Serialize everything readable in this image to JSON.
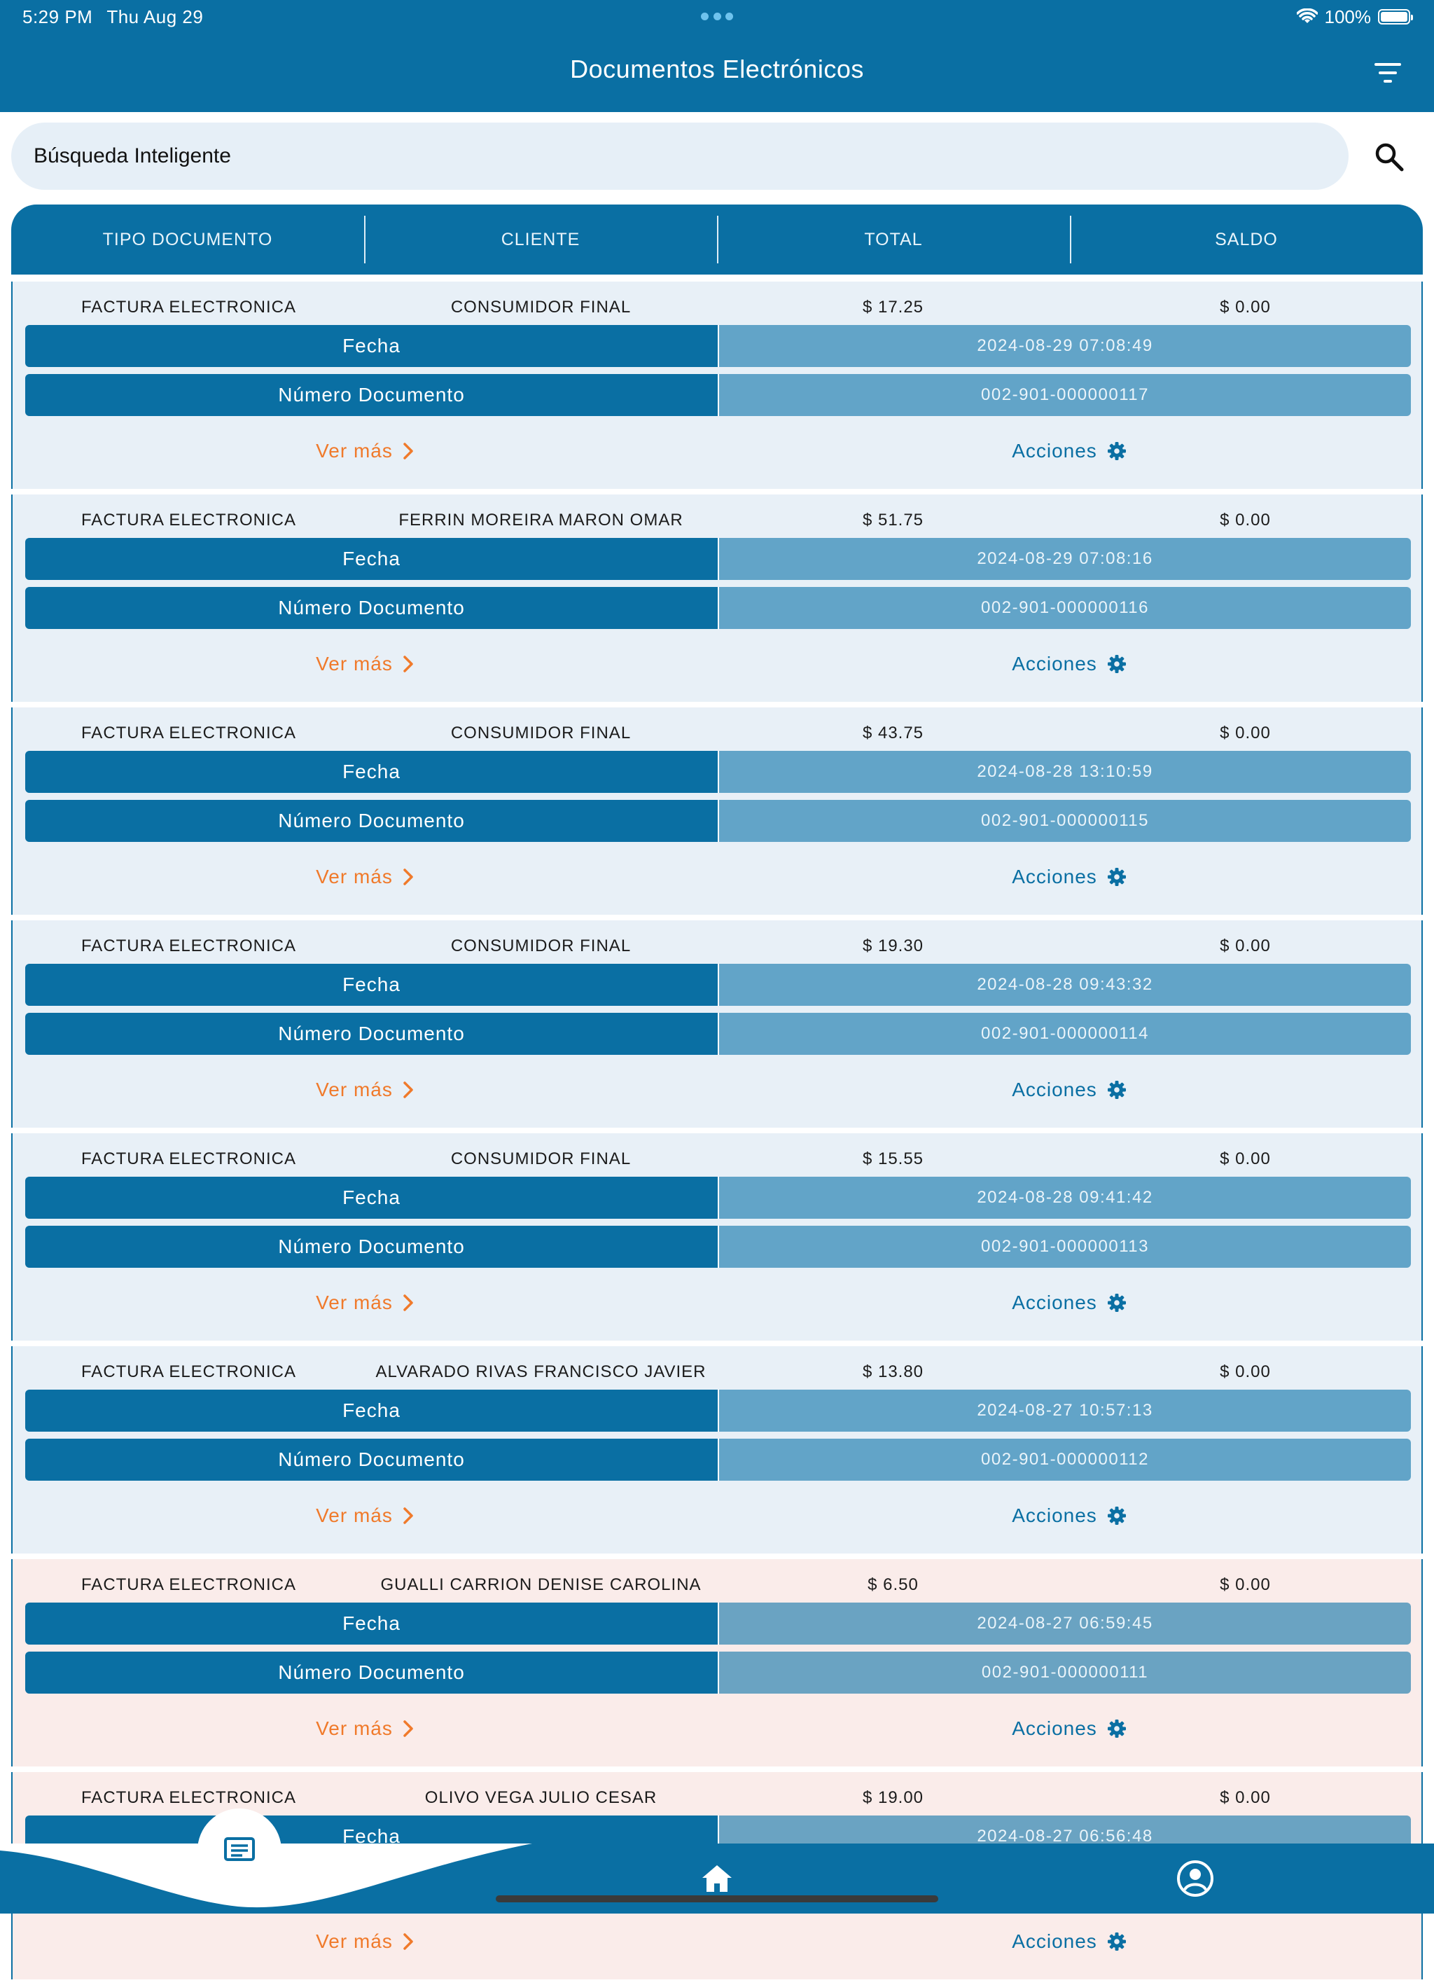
{
  "status_bar": {
    "time": "5:29 PM",
    "date": "Thu Aug 29",
    "battery": "100%"
  },
  "header": {
    "title": "Documentos Electrónicos"
  },
  "search": {
    "placeholder": "Búsqueda Inteligente"
  },
  "columns": [
    "TIPO DOCUMENTO",
    "CLIENTE",
    "TOTAL",
    "SALDO"
  ],
  "row_labels": {
    "fecha": "Fecha",
    "numero": "Número Documento",
    "ver_mas": "Ver más",
    "acciones": "Acciones"
  },
  "documents": [
    {
      "tipo": "FACTURA ELECTRONICA",
      "cliente": "CONSUMIDOR FINAL",
      "total": "$ 17.25",
      "saldo": "$ 0.00",
      "fecha": "2024-08-29 07:08:49",
      "numero": "002-901-000000117",
      "highlight": false
    },
    {
      "tipo": "FACTURA ELECTRONICA",
      "cliente": "FERRIN MOREIRA MARON OMAR",
      "total": "$ 51.75",
      "saldo": "$ 0.00",
      "fecha": "2024-08-29 07:08:16",
      "numero": "002-901-000000116",
      "highlight": false
    },
    {
      "tipo": "FACTURA ELECTRONICA",
      "cliente": "CONSUMIDOR FINAL",
      "total": "$ 43.75",
      "saldo": "$ 0.00",
      "fecha": "2024-08-28 13:10:59",
      "numero": "002-901-000000115",
      "highlight": false
    },
    {
      "tipo": "FACTURA ELECTRONICA",
      "cliente": "CONSUMIDOR FINAL",
      "total": "$ 19.30",
      "saldo": "$ 0.00",
      "fecha": "2024-08-28 09:43:32",
      "numero": "002-901-000000114",
      "highlight": false
    },
    {
      "tipo": "FACTURA ELECTRONICA",
      "cliente": "CONSUMIDOR FINAL",
      "total": "$ 15.55",
      "saldo": "$ 0.00",
      "fecha": "2024-08-28 09:41:42",
      "numero": "002-901-000000113",
      "highlight": false
    },
    {
      "tipo": "FACTURA ELECTRONICA",
      "cliente": "ALVARADO RIVAS FRANCISCO JAVIER",
      "total": "$ 13.80",
      "saldo": "$ 0.00",
      "fecha": "2024-08-27 10:57:13",
      "numero": "002-901-000000112",
      "highlight": false
    },
    {
      "tipo": "FACTURA ELECTRONICA",
      "cliente": "GUALLI CARRION DENISE CAROLINA",
      "total": "$ 6.50",
      "saldo": "$ 0.00",
      "fecha": "2024-08-27 06:59:45",
      "numero": "002-901-000000111",
      "highlight": true
    },
    {
      "tipo": "FACTURA ELECTRONICA",
      "cliente": "OLIVO VEGA JULIO CESAR",
      "total": "$ 19.00",
      "saldo": "$ 0.00",
      "fecha": "2024-08-27 06:56:48",
      "numero": "",
      "highlight": true
    }
  ],
  "tabs": [
    {
      "name": "documents-tab",
      "icon": "document-list-icon",
      "active": true
    },
    {
      "name": "home-tab",
      "icon": "home-icon",
      "active": false
    },
    {
      "name": "profile-tab",
      "icon": "user-circle-icon",
      "active": false
    }
  ],
  "colors": {
    "primary": "#0a6fa3",
    "accent": "#f07a2b",
    "value_cell": "#62a4c8",
    "card_bg": "#e8f0f7",
    "card_highlight_bg": "#faecea"
  }
}
